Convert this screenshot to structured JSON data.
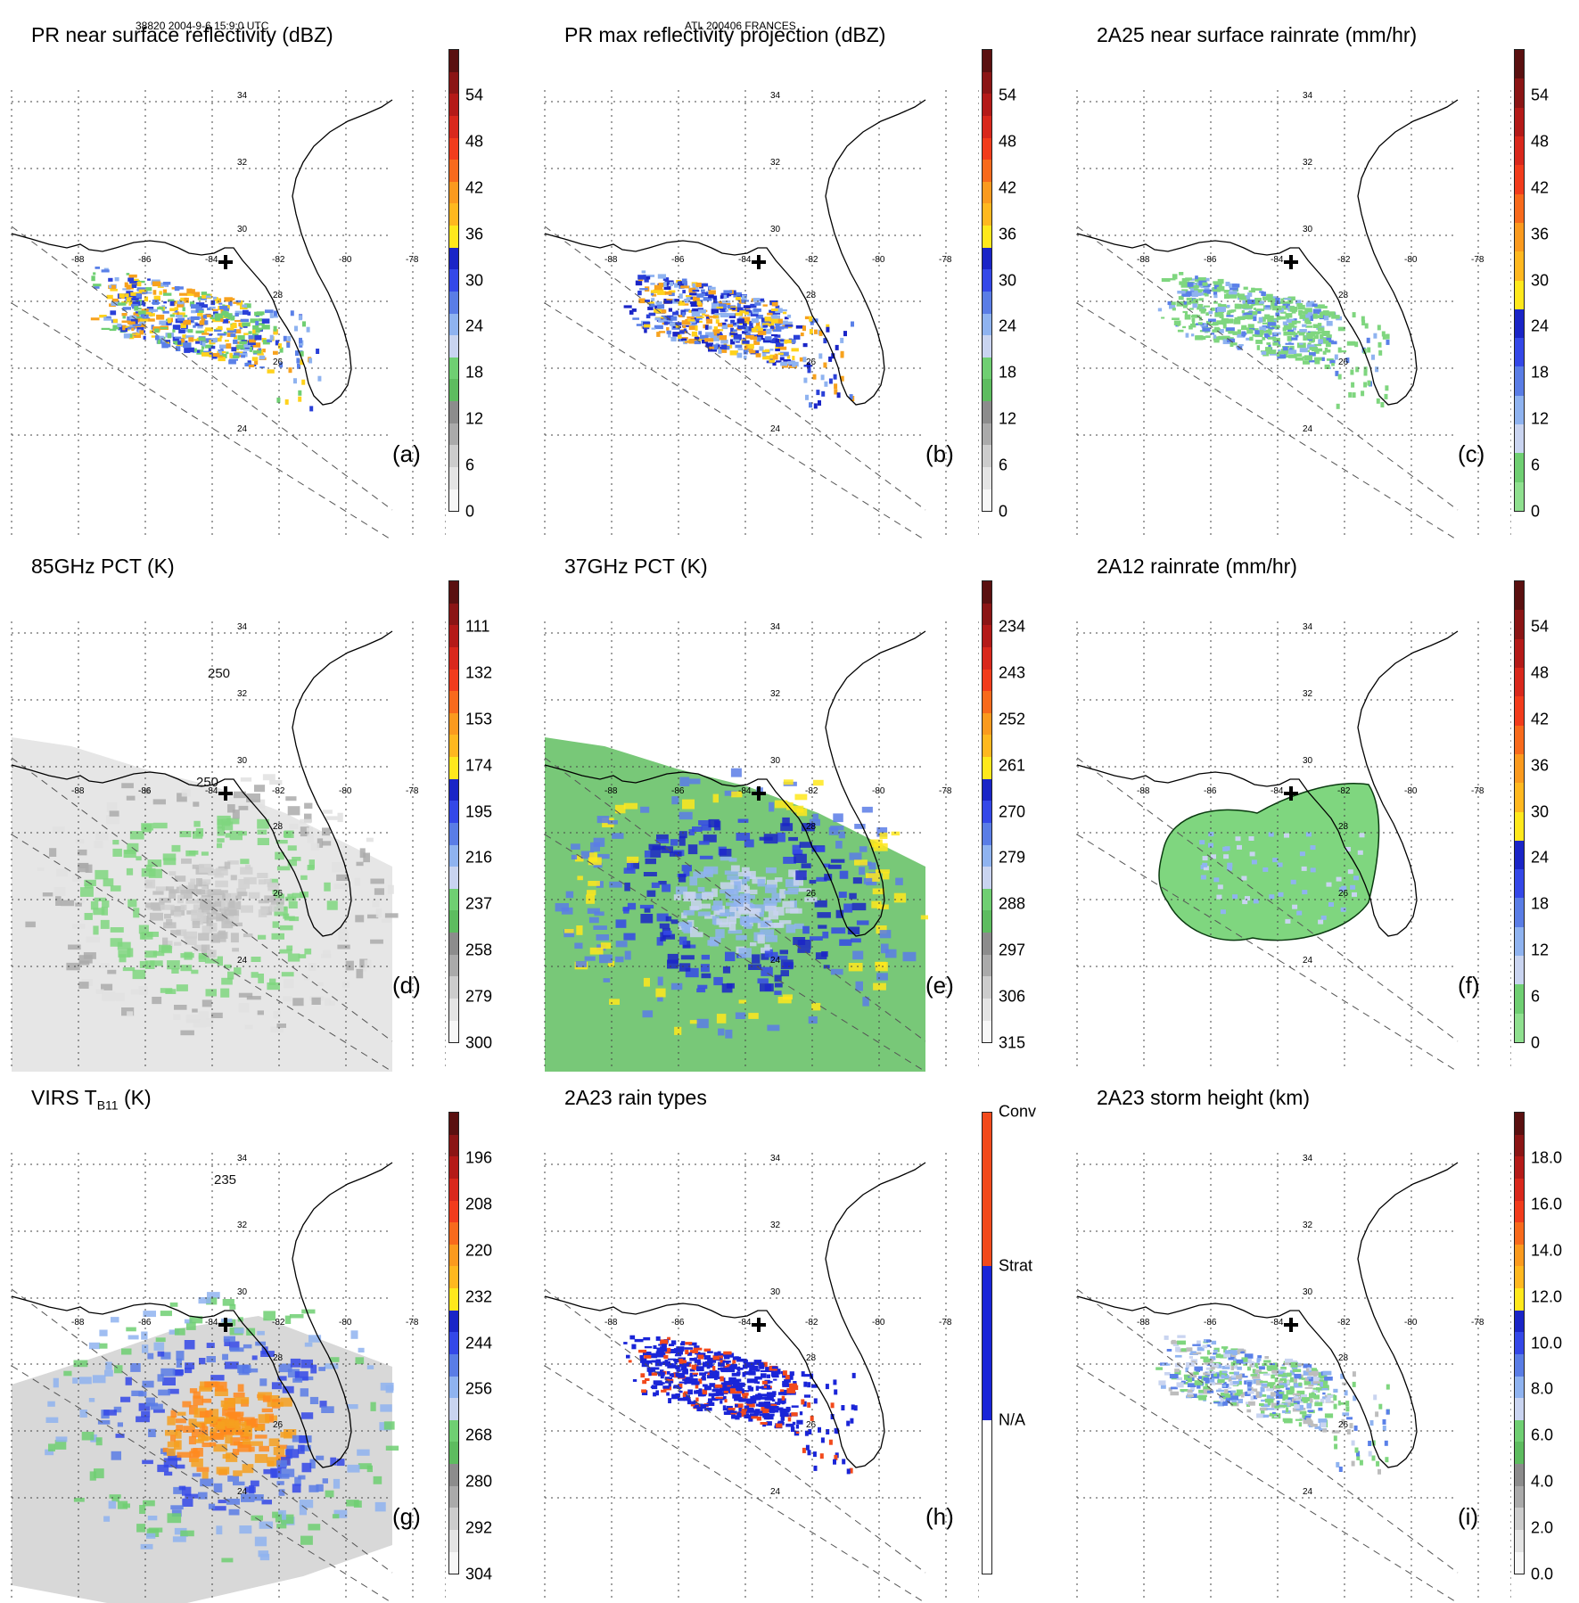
{
  "header": {
    "orbit_time": "38820 2004-9-6 15:9:0 UTC",
    "storm": "ATL 200406 FRANCES"
  },
  "map": {
    "lat_labels": [
      "34",
      "32",
      "30",
      "28",
      "26",
      "24"
    ],
    "lon_labels": [
      "-88",
      "-86",
      "-84",
      "-82",
      "-80",
      "-78"
    ]
  },
  "panels": [
    {
      "id": "a",
      "label": "(a)",
      "title": "PR near surface reflectivity (dBZ)",
      "colorbar": {
        "ticks": [
          "54",
          "48",
          "42",
          "36",
          "30",
          "24",
          "18",
          "12",
          "6",
          "0"
        ],
        "colors": [
          "#5a1010",
          "#8b1515",
          "#b41a18",
          "#d9281c",
          "#f23c1c",
          "#f86a1c",
          "#fb9a1e",
          "#ffb81f",
          "#ffe81c",
          "#1a25c7",
          "#3448e8",
          "#5a7de6",
          "#8fb3f0",
          "#c9d4f0",
          "#6fcf72",
          "#5dbc5f",
          "#8c8c8c",
          "#aaaaaa",
          "#cccccc",
          "#e4e4e4",
          "#f7f7f7"
        ]
      },
      "field": {
        "type": "pr_swath",
        "palette": [
          "#5a80e8",
          "#2a40d8",
          "#f7a21e",
          "#ffd21c",
          "#8fb3f0",
          "#6fcf72"
        ]
      }
    },
    {
      "id": "b",
      "label": "(b)",
      "title": "PR max reflectivity projection (dBZ)",
      "colorbar": {
        "ticks": [
          "54",
          "48",
          "42",
          "36",
          "30",
          "24",
          "18",
          "12",
          "6",
          "0"
        ],
        "colors": [
          "#5a1010",
          "#8b1515",
          "#b41a18",
          "#d9281c",
          "#f23c1c",
          "#f86a1c",
          "#fb9a1e",
          "#ffb81f",
          "#ffe81c",
          "#1a25c7",
          "#3448e8",
          "#5a7de6",
          "#8fb3f0",
          "#c9d4f0",
          "#6fcf72",
          "#5dbc5f",
          "#8c8c8c",
          "#aaaaaa",
          "#cccccc",
          "#e4e4e4",
          "#f7f7f7"
        ]
      },
      "field": {
        "type": "pr_swath",
        "palette": [
          "#2a40d8",
          "#5a80e8",
          "#f7a21e",
          "#ffd21c",
          "#1a25c7",
          "#8fb3f0"
        ]
      }
    },
    {
      "id": "c",
      "label": "(c)",
      "title": "2A25 near surface rainrate (mm/hr)",
      "colorbar": {
        "ticks": [
          "54",
          "48",
          "42",
          "36",
          "30",
          "24",
          "18",
          "12",
          "6",
          "0"
        ],
        "colors": [
          "#5a1010",
          "#8b1515",
          "#b41a18",
          "#d9281c",
          "#f23c1c",
          "#f86a1c",
          "#fb9a1e",
          "#ffb81f",
          "#ffe81c",
          "#1a25c7",
          "#3448e8",
          "#5a7de6",
          "#8fb3f0",
          "#c9d4f0",
          "#6fcf72",
          "#8fe08f"
        ]
      },
      "field": {
        "type": "pr_swath",
        "palette": [
          "#7fd67f",
          "#7fd67f",
          "#7fd67f",
          "#8fb3f0",
          "#5a80e8",
          "#7fd67f"
        ]
      }
    },
    {
      "id": "d",
      "label": "(d)",
      "title": "85GHz PCT (K)",
      "colorbar": {
        "ticks": [
          "111",
          "132",
          "153",
          "174",
          "195",
          "216",
          "237",
          "258",
          "279",
          "300"
        ],
        "colors": [
          "#5a1010",
          "#8b1515",
          "#b41a18",
          "#d9281c",
          "#f23c1c",
          "#f86a1c",
          "#fb9a1e",
          "#ffb81f",
          "#ffe81c",
          "#1a25c7",
          "#3448e8",
          "#5a7de6",
          "#8fb3f0",
          "#c9d4f0",
          "#6fcf72",
          "#5dbc5f",
          "#8c8c8c",
          "#aaaaaa",
          "#cccccc",
          "#e4e4e4",
          "#f7f7f7"
        ]
      },
      "field": {
        "type": "tmi_swath",
        "background": "#e6e6e6",
        "palette": [
          "#d0d0d0",
          "#bdbdbd",
          "#7fd67f",
          "#7fd67f",
          "#aaaaaa",
          "#e0e0e0"
        ]
      },
      "contour_labels": [
        "250",
        "250"
      ]
    },
    {
      "id": "e",
      "label": "(e)",
      "title": "37GHz PCT (K)",
      "colorbar": {
        "ticks": [
          "234",
          "243",
          "252",
          "261",
          "270",
          "279",
          "288",
          "297",
          "306",
          "315"
        ],
        "colors": [
          "#5a1010",
          "#8b1515",
          "#b41a18",
          "#d9281c",
          "#f23c1c",
          "#f86a1c",
          "#fb9a1e",
          "#ffb81f",
          "#ffe81c",
          "#1a25c7",
          "#3448e8",
          "#5a7de6",
          "#8fb3f0",
          "#c9d4f0",
          "#6fcf72",
          "#5dbc5f",
          "#8c8c8c",
          "#aaaaaa",
          "#cccccc",
          "#e4e4e4",
          "#f7f7f7"
        ]
      },
      "field": {
        "type": "tmi_swath",
        "background": "#78c878",
        "palette": [
          "#c9d4f0",
          "#8fb3f0",
          "#3448e8",
          "#1a25c7",
          "#5a7de6",
          "#ffe81c"
        ]
      }
    },
    {
      "id": "f",
      "label": "(f)",
      "title": "2A12 rainrate (mm/hr)",
      "colorbar": {
        "ticks": [
          "54",
          "48",
          "42",
          "36",
          "30",
          "24",
          "18",
          "12",
          "6",
          "0"
        ],
        "colors": [
          "#5a1010",
          "#8b1515",
          "#b41a18",
          "#d9281c",
          "#f23c1c",
          "#f86a1c",
          "#fb9a1e",
          "#ffb81f",
          "#ffe81c",
          "#1a25c7",
          "#3448e8",
          "#5a7de6",
          "#8fb3f0",
          "#c9d4f0",
          "#6fcf72",
          "#8fe08f"
        ]
      },
      "field": {
        "type": "storm_blob",
        "palette": [
          "#7fd67f",
          "#7fd67f",
          "#7fd67f",
          "#8fb3f0",
          "#c9d4f0",
          "#7fd67f"
        ]
      }
    },
    {
      "id": "g",
      "label": "(g)",
      "title": "VIRS T",
      "title_sub": "B11",
      "title_suffix": " (K)",
      "colorbar": {
        "ticks": [
          "196",
          "208",
          "220",
          "232",
          "244",
          "256",
          "268",
          "280",
          "292",
          "304"
        ],
        "colors": [
          "#5a1010",
          "#8b1515",
          "#b41a18",
          "#d9281c",
          "#f23c1c",
          "#f86a1c",
          "#fb9a1e",
          "#ffb81f",
          "#ffe81c",
          "#1a25c7",
          "#3448e8",
          "#5a7de6",
          "#8fb3f0",
          "#c9d4f0",
          "#6fcf72",
          "#5dbc5f",
          "#8c8c8c",
          "#aaaaaa",
          "#cccccc",
          "#e4e4e4",
          "#f7f7f7"
        ]
      },
      "field": {
        "type": "virs_swath",
        "background": "#d8d8d8",
        "palette": [
          "#f6a020",
          "#ff8a1e",
          "#3448e8",
          "#5a7de6",
          "#8fb3f0",
          "#6fcf72"
        ]
      },
      "contour_labels": [
        "235"
      ]
    },
    {
      "id": "h",
      "label": "(h)",
      "title": "2A23 rain types",
      "colorbar": {
        "categorical": true,
        "ticks": [
          "Conv",
          "Strat",
          "N/A"
        ],
        "colors": [
          "#f24a1c",
          "#1a25d8",
          "#ffffff"
        ]
      },
      "field": {
        "type": "pr_swath",
        "palette": [
          "#1a25d8",
          "#1a25d8",
          "#1a25d8",
          "#f24a1c",
          "#1a25d8",
          "#1a25d8"
        ]
      }
    },
    {
      "id": "i",
      "label": "(i)",
      "title": "2A23 storm height (km)",
      "colorbar": {
        "ticks": [
          "18.0",
          "16.0",
          "14.0",
          "12.0",
          "10.0",
          "8.0",
          "6.0",
          "4.0",
          "2.0",
          "0.0"
        ],
        "colors": [
          "#5a1010",
          "#8b1515",
          "#b41a18",
          "#d9281c",
          "#f23c1c",
          "#f86a1c",
          "#fb9a1e",
          "#ffb81f",
          "#ffe81c",
          "#1a25c7",
          "#3448e8",
          "#5a7de6",
          "#8fb3f0",
          "#c9d4f0",
          "#6fcf72",
          "#5dbc5f",
          "#8c8c8c",
          "#aaaaaa",
          "#cccccc",
          "#e4e4e4",
          "#f7f7f7"
        ]
      },
      "field": {
        "type": "pr_swath",
        "palette": [
          "#7fd67f",
          "#8fb3f0",
          "#c9d4f0",
          "#bdbdbd",
          "#5a80e8",
          "#7fd67f"
        ]
      }
    }
  ]
}
